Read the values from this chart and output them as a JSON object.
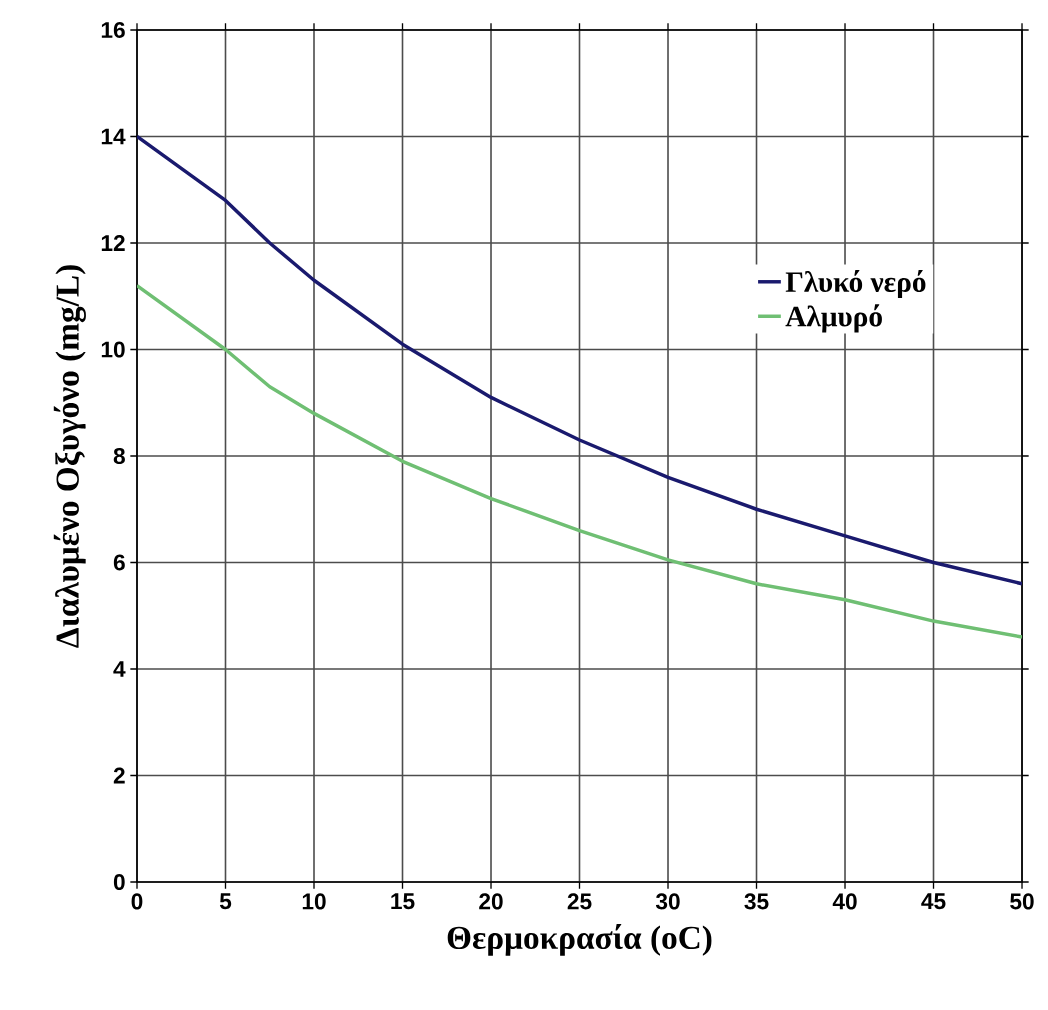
{
  "chart_data": {
    "type": "line",
    "xlabel": "Θερμοκρασία (oC)",
    "ylabel": "Διαλυμένο Οξυγόνο (mg/L)",
    "x": [
      0,
      5,
      7.5,
      10,
      15,
      20,
      25,
      30,
      35,
      40,
      45,
      50
    ],
    "series": [
      {
        "name": "Γλυκό νερό",
        "color": "#1a1a6e",
        "values": [
          14.0,
          12.8,
          12.0,
          11.3,
          10.1,
          9.1,
          8.3,
          7.6,
          7.0,
          6.5,
          6.0,
          5.6
        ]
      },
      {
        "name": "Αλμυρό",
        "color": "#6fbf73",
        "values": [
          11.2,
          10.0,
          9.3,
          8.8,
          7.9,
          7.2,
          6.6,
          6.05,
          5.6,
          5.3,
          4.9,
          4.6
        ]
      }
    ],
    "xlim": [
      0,
      50
    ],
    "ylim": [
      0,
      16
    ],
    "xticks": [
      0,
      5,
      10,
      15,
      20,
      25,
      30,
      35,
      40,
      45,
      50
    ],
    "yticks": [
      0,
      2,
      4,
      6,
      8,
      10,
      12,
      14,
      16
    ],
    "grid": true,
    "legend": "right",
    "marker": "none",
    "line_style": "solid"
  }
}
